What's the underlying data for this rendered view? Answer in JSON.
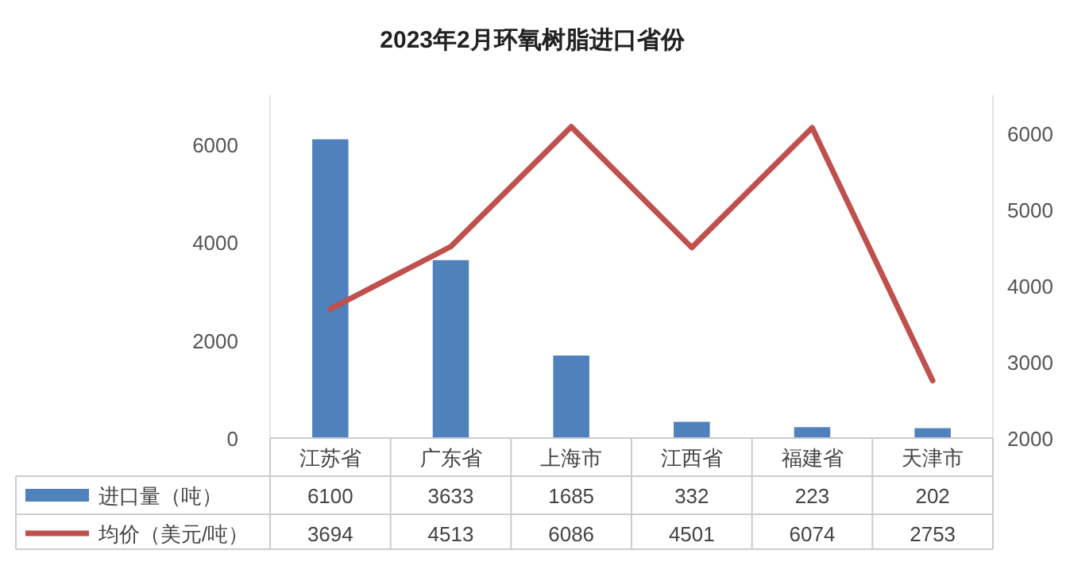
{
  "chart_data": {
    "type": "bar",
    "title": "2023年2月环氧树脂进口省份",
    "categories": [
      "江苏省",
      "广东省",
      "上海市",
      "江西省",
      "福建省",
      "天津市"
    ],
    "series": [
      {
        "name": "进口量（吨）",
        "color": "#4f81bd",
        "values": [
          6100,
          3633,
          1685,
          332,
          223,
          202
        ]
      },
      {
        "name": "均价（美元/吨）",
        "type": "line",
        "axis": "y2",
        "color": "#c0504d",
        "values": [
          3694,
          4513,
          6086,
          4501,
          6074,
          2753
        ]
      }
    ],
    "ylim": [
      0,
      7000
    ],
    "yticks": [
      0,
      2000,
      4000,
      6000
    ],
    "y2lim": [
      2000,
      6500
    ],
    "y2ticks": [
      2000,
      3000,
      4000,
      5000,
      6000
    ],
    "data_labels": true,
    "legend": "bottom"
  }
}
